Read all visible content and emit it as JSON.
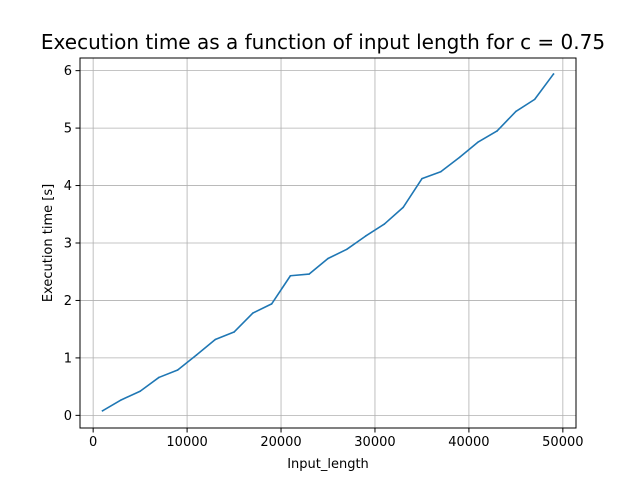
{
  "chart_data": {
    "type": "line",
    "title": "Execution time as a function of input length for c = 0.75",
    "xlabel": "Input_length",
    "ylabel": "Execution time [s]",
    "xlim": [
      -1400,
      51400
    ],
    "ylim": [
      -0.22,
      6.22
    ],
    "xticks": [
      0,
      10000,
      20000,
      30000,
      40000,
      50000
    ],
    "xtick_labels": [
      "0",
      "10000",
      "20000",
      "30000",
      "40000",
      "50000"
    ],
    "yticks": [
      0,
      1,
      2,
      3,
      4,
      5,
      6
    ],
    "ytick_labels": [
      "0",
      "1",
      "2",
      "3",
      "4",
      "5",
      "6"
    ],
    "grid": true,
    "line_color": "#1f77b4",
    "series": [
      {
        "x": [
          1000,
          3000,
          5000,
          7000,
          9000,
          11000,
          13000,
          15000,
          17000,
          19000,
          21000,
          23000,
          25000,
          27000,
          29000,
          31000,
          33000,
          35000,
          37000,
          39000,
          41000,
          43000,
          45000,
          47000,
          49000
        ],
        "values": [
          0.08,
          0.27,
          0.42,
          0.66,
          0.79,
          1.05,
          1.32,
          1.45,
          1.78,
          1.94,
          2.43,
          2.46,
          2.73,
          2.89,
          3.12,
          3.33,
          3.62,
          4.12,
          4.24,
          4.49,
          4.76,
          4.95,
          5.29,
          5.5,
          5.94
        ]
      }
    ]
  }
}
